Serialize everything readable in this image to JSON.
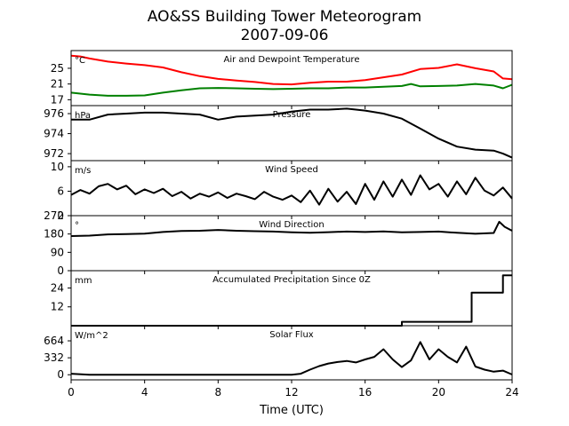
{
  "chart": {
    "title_line1": "AO&SS Building Tower Meteorogram",
    "title_line2": "2007-09-06",
    "xlabel": "Time (UTC)"
  },
  "chart_data": {
    "type": "line",
    "x_ticks": [
      "0",
      "4",
      "8",
      "12",
      "16",
      "20",
      "24"
    ],
    "xlim": [
      0,
      24
    ],
    "panels": [
      {
        "title": "Air and Dewpoint Temperature",
        "unit": "°C",
        "ylim": [
          15.5,
          29.5
        ],
        "y_ticks": [
          17,
          21,
          25
        ],
        "series": [
          {
            "color": "#ff0000",
            "points": [
              [
                0,
                28.2
              ],
              [
                0.5,
                28
              ],
              [
                1,
                27.5
              ],
              [
                2,
                26.7
              ],
              [
                3,
                26.2
              ],
              [
                4,
                25.8
              ],
              [
                5,
                25.2
              ],
              [
                6,
                24
              ],
              [
                7,
                23
              ],
              [
                8,
                22.3
              ],
              [
                9,
                21.9
              ],
              [
                10,
                21.5
              ],
              [
                11,
                21
              ],
              [
                12,
                20.9
              ],
              [
                13,
                21.3
              ],
              [
                14,
                21.6
              ],
              [
                15,
                21.6
              ],
              [
                16,
                22
              ],
              [
                17,
                22.7
              ],
              [
                18,
                23.4
              ],
              [
                19,
                24.8
              ],
              [
                20,
                25.1
              ],
              [
                21,
                26
              ],
              [
                22,
                25
              ],
              [
                23,
                24.2
              ],
              [
                23.5,
                22.4
              ],
              [
                24,
                22.2
              ]
            ]
          },
          {
            "color": "#008000",
            "points": [
              [
                0,
                18.8
              ],
              [
                1,
                18.3
              ],
              [
                2,
                18
              ],
              [
                3,
                18
              ],
              [
                4,
                18.1
              ],
              [
                5,
                18.8
              ],
              [
                6,
                19.4
              ],
              [
                7,
                19.9
              ],
              [
                8,
                20
              ],
              [
                9,
                19.9
              ],
              [
                10,
                19.8
              ],
              [
                11,
                19.7
              ],
              [
                12,
                19.8
              ],
              [
                13,
                19.9
              ],
              [
                14,
                19.9
              ],
              [
                15,
                20.1
              ],
              [
                16,
                20.1
              ],
              [
                17,
                20.3
              ],
              [
                18,
                20.5
              ],
              [
                18.5,
                21
              ],
              [
                19,
                20.4
              ],
              [
                20,
                20.5
              ],
              [
                21,
                20.6
              ],
              [
                22,
                21
              ],
              [
                23,
                20.6
              ],
              [
                23.5,
                19.9
              ],
              [
                24,
                20.8
              ]
            ]
          }
        ]
      },
      {
        "title": "Pressure",
        "unit": "hPa",
        "ylim": [
          971.3,
          976.8
        ],
        "y_ticks": [
          972,
          974,
          976
        ],
        "series": [
          {
            "color": "#000000",
            "points": [
              [
                0,
                975.4
              ],
              [
                1,
                975.4
              ],
              [
                2,
                975.9
              ],
              [
                3,
                976
              ],
              [
                4,
                976.1
              ],
              [
                5,
                976.1
              ],
              [
                6,
                976
              ],
              [
                7,
                975.9
              ],
              [
                8,
                975.4
              ],
              [
                9,
                975.7
              ],
              [
                10,
                975.8
              ],
              [
                11,
                975.9
              ],
              [
                12,
                976.2
              ],
              [
                13,
                976.4
              ],
              [
                14,
                976.4
              ],
              [
                15,
                976.5
              ],
              [
                16,
                976.3
              ],
              [
                17,
                976
              ],
              [
                18,
                975.5
              ],
              [
                19,
                974.5
              ],
              [
                20,
                973.5
              ],
              [
                21,
                972.7
              ],
              [
                22,
                972.4
              ],
              [
                23,
                972.3
              ],
              [
                23.5,
                972
              ],
              [
                24,
                971.6
              ]
            ]
          }
        ]
      },
      {
        "title": "Wind Speed",
        "unit": "m/s",
        "ylim": [
          2,
          11
        ],
        "y_ticks": [
          2,
          6,
          10
        ],
        "series": [
          {
            "color": "#000000",
            "points": [
              [
                0,
                5.4
              ],
              [
                0.5,
                6.2
              ],
              [
                1,
                5.6
              ],
              [
                1.5,
                6.8
              ],
              [
                2,
                7.2
              ],
              [
                2.5,
                6.3
              ],
              [
                3,
                6.9
              ],
              [
                3.5,
                5.5
              ],
              [
                4,
                6.3
              ],
              [
                4.5,
                5.7
              ],
              [
                5,
                6.4
              ],
              [
                5.5,
                5.2
              ],
              [
                6,
                5.9
              ],
              [
                6.5,
                4.8
              ],
              [
                7,
                5.6
              ],
              [
                7.5,
                5.1
              ],
              [
                8,
                5.8
              ],
              [
                8.5,
                4.9
              ],
              [
                9,
                5.6
              ],
              [
                9.5,
                5.2
              ],
              [
                10,
                4.7
              ],
              [
                10.5,
                5.9
              ],
              [
                11,
                5.1
              ],
              [
                11.5,
                4.6
              ],
              [
                12,
                5.3
              ],
              [
                12.5,
                4.2
              ],
              [
                13,
                6.1
              ],
              [
                13.5,
                3.8
              ],
              [
                14,
                6.4
              ],
              [
                14.5,
                4.3
              ],
              [
                15,
                5.9
              ],
              [
                15.5,
                3.9
              ],
              [
                16,
                7.2
              ],
              [
                16.5,
                4.6
              ],
              [
                17,
                7.6
              ],
              [
                17.5,
                5.1
              ],
              [
                18,
                7.9
              ],
              [
                18.5,
                5.4
              ],
              [
                19,
                8.6
              ],
              [
                19.5,
                6.3
              ],
              [
                20,
                7.2
              ],
              [
                20.5,
                5.1
              ],
              [
                21,
                7.6
              ],
              [
                21.5,
                5.5
              ],
              [
                22,
                8.2
              ],
              [
                22.5,
                6.1
              ],
              [
                23,
                5.3
              ],
              [
                23.5,
                6.6
              ],
              [
                24,
                4.8
              ]
            ]
          }
        ]
      },
      {
        "title": "Wind Direction",
        "unit": "°",
        "ylim": [
          0,
          270
        ],
        "y_ticks": [
          0,
          90,
          180,
          270
        ],
        "series": [
          {
            "color": "#000000",
            "points": [
              [
                0,
                170
              ],
              [
                1,
                172
              ],
              [
                2,
                178
              ],
              [
                3,
                180
              ],
              [
                4,
                182
              ],
              [
                5,
                190
              ],
              [
                6,
                195
              ],
              [
                7,
                196
              ],
              [
                8,
                200
              ],
              [
                9,
                196
              ],
              [
                10,
                194
              ],
              [
                11,
                192
              ],
              [
                12,
                188
              ],
              [
                13,
                186
              ],
              [
                14,
                189
              ],
              [
                15,
                192
              ],
              [
                16,
                190
              ],
              [
                17,
                193
              ],
              [
                18,
                188
              ],
              [
                19,
                190
              ],
              [
                20,
                192
              ],
              [
                21,
                186
              ],
              [
                22,
                181
              ],
              [
                23,
                185
              ],
              [
                23.3,
                240
              ],
              [
                23.6,
                215
              ],
              [
                24,
                196
              ]
            ]
          }
        ]
      },
      {
        "title": "Accumulated Precipitation Since 0Z",
        "unit": "mm",
        "ylim": [
          0,
          35
        ],
        "y_ticks": [
          12,
          24
        ],
        "series": [
          {
            "color": "#000000",
            "points": [
              [
                0,
                0
              ],
              [
                18,
                0
              ],
              [
                18,
                2.5
              ],
              [
                21.8,
                2.5
              ],
              [
                21.8,
                21
              ],
              [
                23.5,
                21
              ],
              [
                23.5,
                32
              ],
              [
                24,
                32
              ]
            ]
          }
        ]
      },
      {
        "title": "Solar Flux",
        "unit": "W/m^2",
        "ylim": [
          -100,
          960
        ],
        "y_ticks": [
          0,
          332,
          664
        ],
        "series": [
          {
            "color": "#000000",
            "points": [
              [
                0,
                20
              ],
              [
                1,
                0
              ],
              [
                12,
                0
              ],
              [
                12.5,
                20
              ],
              [
                13,
                100
              ],
              [
                13.5,
                170
              ],
              [
                14,
                220
              ],
              [
                14.5,
                250
              ],
              [
                15,
                270
              ],
              [
                15.5,
                240
              ],
              [
                16,
                300
              ],
              [
                16.5,
                350
              ],
              [
                17,
                500
              ],
              [
                17.5,
                300
              ],
              [
                18,
                150
              ],
              [
                18.5,
                280
              ],
              [
                19,
                640
              ],
              [
                19.5,
                300
              ],
              [
                20,
                500
              ],
              [
                20.5,
                350
              ],
              [
                21,
                240
              ],
              [
                21.5,
                550
              ],
              [
                22,
                160
              ],
              [
                22.5,
                100
              ],
              [
                23,
                60
              ],
              [
                23.5,
                80
              ],
              [
                24,
                5
              ]
            ]
          }
        ]
      }
    ]
  }
}
